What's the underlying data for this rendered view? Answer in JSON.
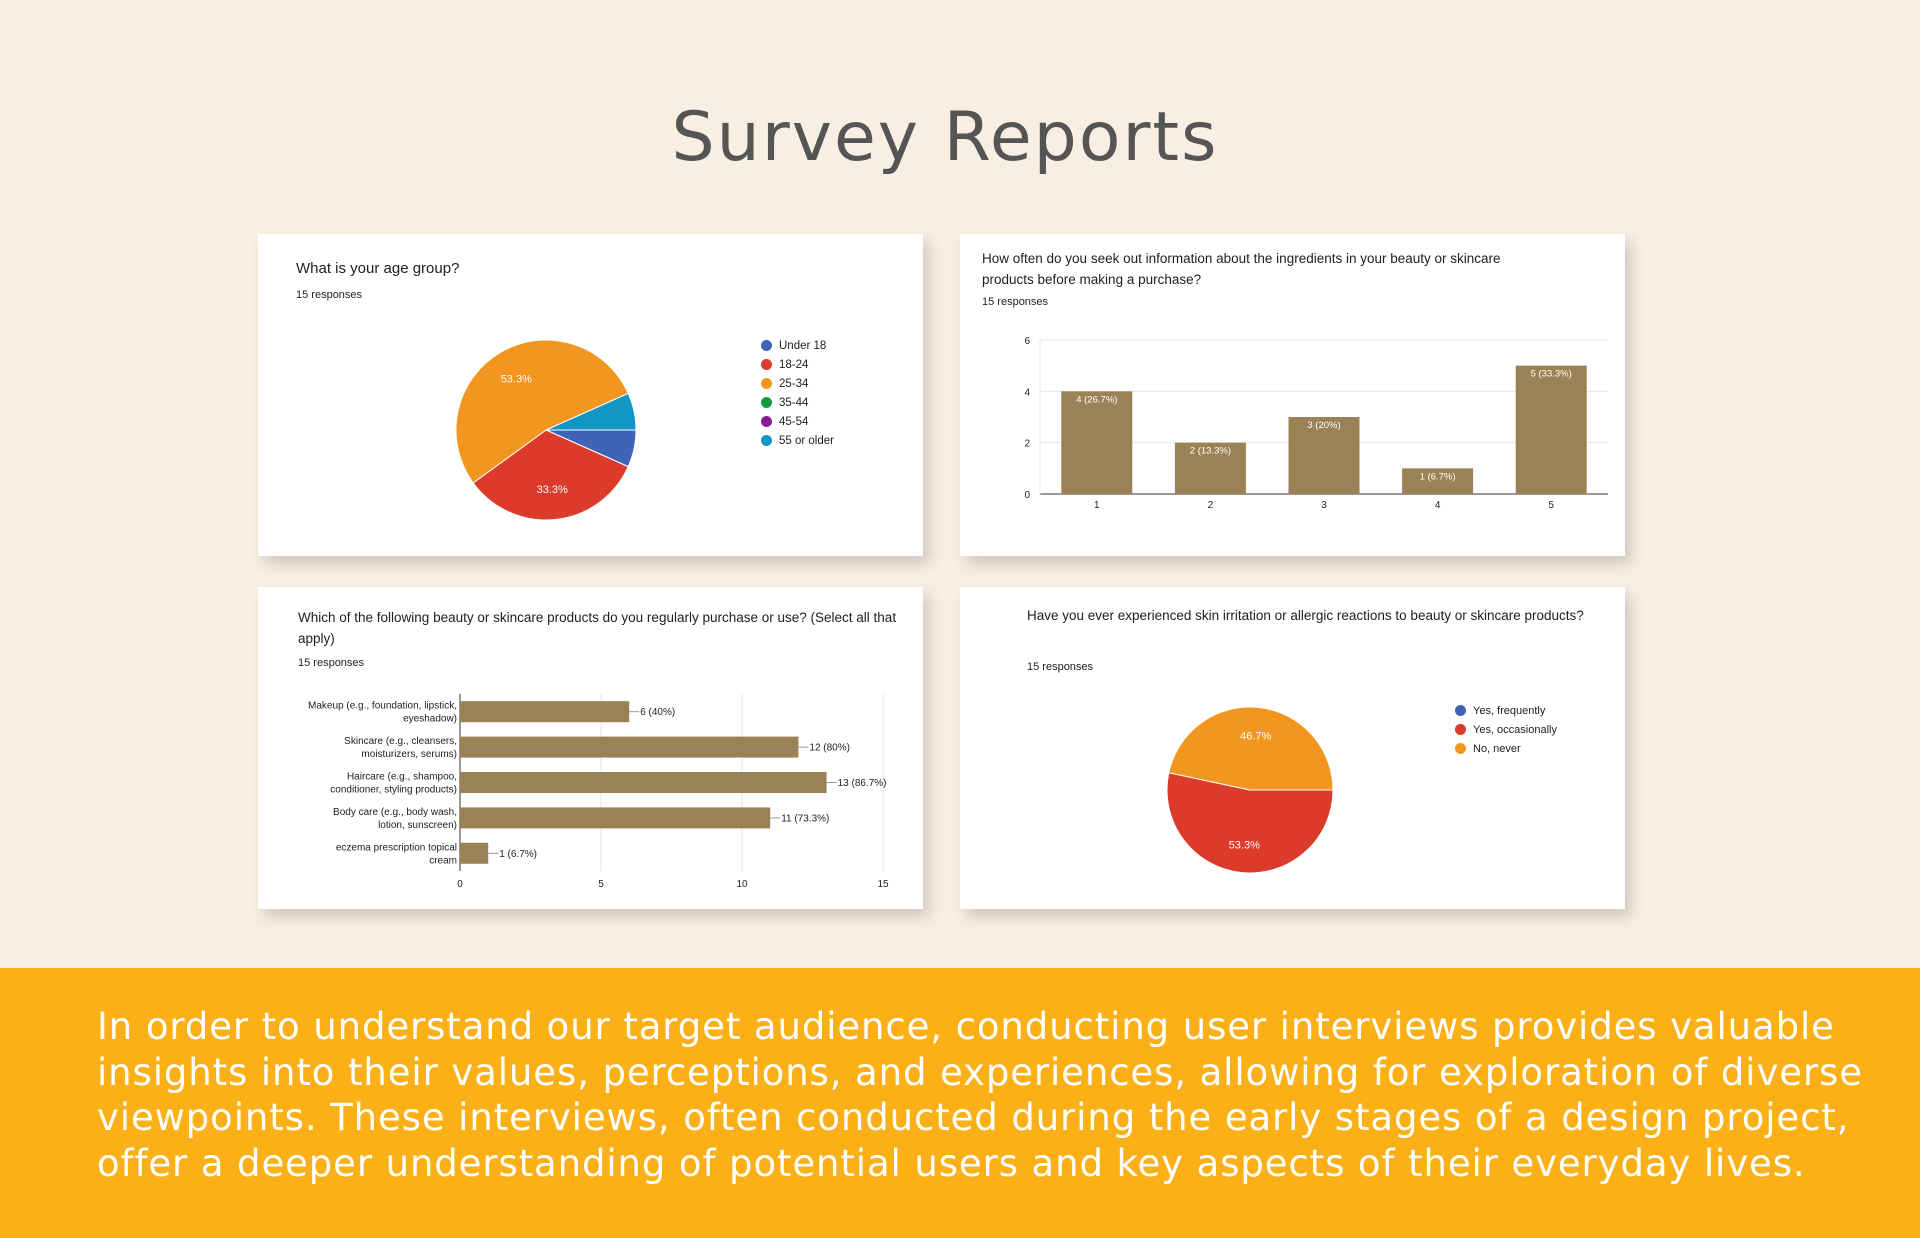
{
  "page": {
    "title": "Survey Reports",
    "footer_text": "In order to understand our target audience, conducting user interviews provides valuable insights into their values, perceptions, and experiences, allowing for exploration of diverse viewpoints. These interviews, often conducted during the early stages of a design project, offer a deeper understanding of potential users and key aspects of their everyday lives."
  },
  "colors": {
    "background": "#f8efe2",
    "footer": "#fbb017",
    "bar": "#9b8256",
    "blue": "#3f64b7",
    "red": "#dc3a2a",
    "orange": "#f3961f",
    "green": "#139a47",
    "purple": "#8b1b94",
    "teal": "#1096c4"
  },
  "chart_data": [
    {
      "type": "pie",
      "title": "What is your age group?",
      "subtitle": "15 responses",
      "categories": [
        "Under 18",
        "18-24",
        "25-34",
        "35-44",
        "45-54",
        "55 or older"
      ],
      "values": [
        1,
        5,
        8,
        0,
        0,
        1
      ],
      "percent_labels": [
        "",
        "33.3%",
        "53.3%",
        "",
        "",
        ""
      ],
      "colors": [
        "#3f64b7",
        "#dc3a2a",
        "#f3961f",
        "#139a47",
        "#8b1b94",
        "#1096c4"
      ],
      "legend": "right"
    },
    {
      "type": "bar",
      "title": "How often do you seek out information about the ingredients in your beauty or skincare products before making a purchase?",
      "subtitle": "15 responses",
      "categories": [
        "1",
        "2",
        "3",
        "4",
        "5"
      ],
      "values": [
        4,
        2,
        3,
        1,
        5
      ],
      "data_labels": [
        "4 (26.7%)",
        "2 (13.3%)",
        "3 (20%)",
        "1 (6.7%)",
        "5 (33.3%)"
      ],
      "ylim": [
        0,
        6
      ],
      "yticks": [
        "0",
        "2",
        "4",
        "6"
      ],
      "grid": true
    },
    {
      "type": "bar",
      "orientation": "horizontal",
      "title": "Which of the following beauty or skincare products do you regularly purchase or use? (Select all that apply)",
      "subtitle": "15 responses",
      "categories": [
        [
          "Makeup (e.g., foundation, lipstick,",
          "eyeshadow)"
        ],
        [
          "Skincare (e.g., cleansers,",
          "moisturizers, serums)"
        ],
        [
          "Haircare (e.g., shampoo,",
          "conditioner, styling products)"
        ],
        [
          "Body care (e.g., body wash,",
          "lotion, sunscreen)"
        ],
        [
          "eczema prescription topical",
          "cream"
        ]
      ],
      "values": [
        6,
        12,
        13,
        11,
        1
      ],
      "data_labels": [
        "6 (40%)",
        "12 (80%)",
        "13 (86.7%)",
        "11 (73.3%)",
        "1 (6.7%)"
      ],
      "xlim": [
        0,
        15
      ],
      "xticks": [
        "0",
        "5",
        "10",
        "15"
      ],
      "grid": true
    },
    {
      "type": "pie",
      "title": "Have you ever experienced skin irritation or allergic reactions to beauty or skincare products?",
      "subtitle": "15 responses",
      "categories": [
        "Yes, frequently",
        "Yes, occasionally",
        "No, never"
      ],
      "values": [
        0,
        8,
        7
      ],
      "percent_labels": [
        "",
        "53.3%",
        "46.7%"
      ],
      "colors": [
        "#3f64b7",
        "#dc3a2a",
        "#f3961f"
      ],
      "legend": "right"
    }
  ]
}
